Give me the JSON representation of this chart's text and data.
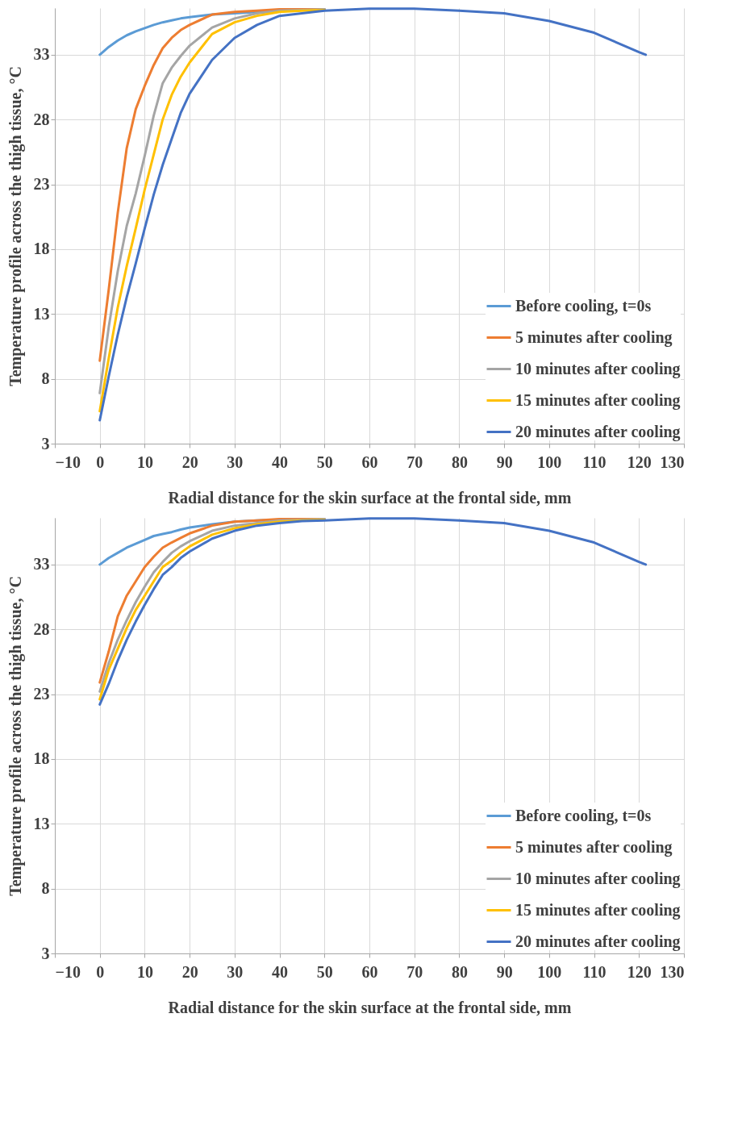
{
  "chart_data": [
    {
      "type": "line",
      "xlabel": "Radial distance for the skin surface at the frontal side, mm",
      "ylabel": "Temperature profile across the thigh tissue, °C",
      "x": [
        0,
        2,
        4,
        6,
        8,
        10,
        12,
        14,
        16,
        18,
        20,
        25,
        30,
        35,
        40,
        45,
        50,
        60,
        70,
        80,
        90,
        100,
        110,
        120,
        121.5
      ],
      "series": [
        {
          "name": "Before cooling, t=0s",
          "color": "#5b9bd5",
          "values": [
            33,
            33.6,
            34.1,
            34.5,
            34.8,
            35.05,
            35.3,
            35.5,
            35.65,
            35.8,
            35.9,
            36.1,
            36.2,
            36.3,
            36.4,
            36.45,
            36.5,
            null,
            null,
            null,
            null,
            null,
            null,
            null,
            null
          ]
        },
        {
          "name": "5 minutes after cooling",
          "color": "#ed7d31",
          "values": [
            9.4,
            14.9,
            20.8,
            25.8,
            28.8,
            30.6,
            32.2,
            33.5,
            34.3,
            34.9,
            35.3,
            36.1,
            36.3,
            36.4,
            36.5,
            36.5,
            36.5,
            null,
            null,
            null,
            null,
            null,
            null,
            null,
            null
          ]
        },
        {
          "name": "10 minutes after cooling",
          "color": "#a5a5a5",
          "values": [
            6.9,
            12,
            16.3,
            19.8,
            22.3,
            25.2,
            28.3,
            30.8,
            32,
            32.9,
            33.7,
            35.1,
            35.8,
            36.2,
            36.4,
            36.45,
            36.5,
            null,
            null,
            null,
            null,
            null,
            null,
            null,
            null
          ]
        },
        {
          "name": "15 minutes after cooling",
          "color": "#ffc000",
          "values": [
            5.5,
            9.6,
            13.5,
            16.7,
            19.6,
            22.6,
            25.3,
            28,
            29.9,
            31.3,
            32.4,
            34.6,
            35.5,
            36,
            36.3,
            36.4,
            36.45,
            null,
            null,
            null,
            null,
            null,
            null,
            null,
            null
          ]
        },
        {
          "name": "20 minutes after cooling",
          "color": "#4472c4",
          "values": [
            4.8,
            8.2,
            11.4,
            14.3,
            16.9,
            19.6,
            22.2,
            24.5,
            26.5,
            28.5,
            30,
            32.6,
            34.3,
            35.3,
            36,
            36.2,
            36.4,
            36.55,
            36.55,
            36.4,
            36.2,
            35.6,
            34.7,
            33.2,
            33
          ]
        }
      ],
      "xlim": [
        -10,
        130
      ],
      "xticks": [
        -10,
        0,
        10,
        20,
        30,
        40,
        50,
        60,
        70,
        80,
        90,
        100,
        110,
        120,
        130
      ],
      "ylim": [
        3,
        36.6
      ],
      "yticks": [
        3,
        8,
        13,
        18,
        23,
        28,
        33
      ],
      "grid": true,
      "legend": "bottom right",
      "marker": "none",
      "line_style": "solid"
    },
    {
      "type": "line",
      "xlabel": "Radial distance for the skin surface at the frontal side, mm",
      "ylabel": "Temperature profile across the thigh tissue, °C",
      "x": [
        0,
        2,
        4,
        6,
        8,
        10,
        12,
        14,
        16,
        18,
        20,
        25,
        30,
        35,
        40,
        45,
        50,
        60,
        70,
        80,
        90,
        100,
        110,
        120,
        121.5
      ],
      "series": [
        {
          "name": "Before cooling, t=0s",
          "color": "#5b9bd5",
          "values": [
            33,
            33.5,
            33.9,
            34.3,
            34.6,
            34.9,
            35.2,
            35.35,
            35.5,
            35.7,
            35.85,
            36.1,
            36.3,
            36.4,
            36.45,
            36.5,
            36.5,
            null,
            null,
            null,
            null,
            null,
            null,
            null,
            null
          ]
        },
        {
          "name": "5 minutes after cooling",
          "color": "#ed7d31",
          "values": [
            23.9,
            26.3,
            29,
            30.6,
            31.7,
            32.8,
            33.6,
            34.3,
            34.7,
            35.05,
            35.4,
            36,
            36.3,
            36.4,
            36.5,
            36.5,
            36.5,
            null,
            null,
            null,
            null,
            null,
            null,
            null,
            null
          ]
        },
        {
          "name": "10 minutes after cooling",
          "color": "#a5a5a5",
          "values": [
            23.2,
            25.4,
            27.2,
            28.7,
            30.1,
            31.3,
            32.4,
            33.2,
            33.9,
            34.4,
            34.8,
            35.6,
            36,
            36.2,
            36.4,
            36.45,
            36.5,
            null,
            null,
            null,
            null,
            null,
            null,
            null,
            null
          ]
        },
        {
          "name": "15 minutes after cooling",
          "color": "#ffc000",
          "values": [
            22.6,
            24.9,
            26.5,
            28.1,
            29.5,
            30.6,
            31.7,
            32.8,
            33.3,
            33.9,
            34.4,
            35.3,
            35.8,
            36.1,
            36.3,
            36.4,
            36.45,
            null,
            null,
            null,
            null,
            null,
            null,
            null,
            null
          ]
        },
        {
          "name": "20 minutes after cooling",
          "color": "#4472c4",
          "values": [
            22.2,
            23.8,
            25.6,
            27.2,
            28.6,
            29.9,
            31.1,
            32.2,
            32.8,
            33.5,
            34,
            35,
            35.6,
            36,
            36.2,
            36.35,
            36.4,
            36.55,
            36.55,
            36.4,
            36.2,
            35.6,
            34.7,
            33.2,
            33
          ]
        }
      ],
      "xlim": [
        -10,
        130
      ],
      "xticks": [
        -10,
        0,
        10,
        20,
        30,
        40,
        50,
        60,
        70,
        80,
        90,
        100,
        110,
        120,
        130
      ],
      "ylim": [
        3,
        36.6
      ],
      "yticks": [
        3,
        8,
        13,
        18,
        23,
        28,
        33
      ],
      "grid": true,
      "legend": "bottom right",
      "marker": "none",
      "line_style": "solid"
    }
  ]
}
